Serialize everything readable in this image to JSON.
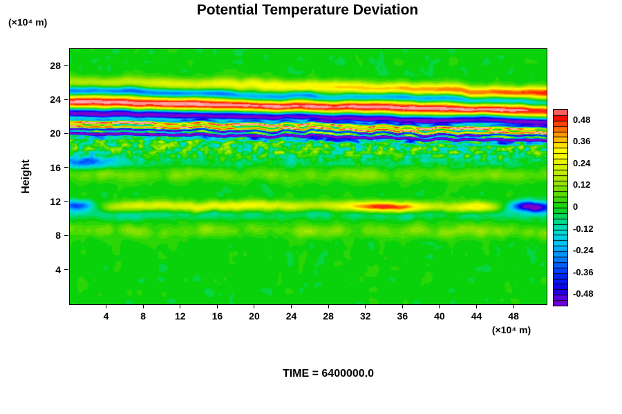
{
  "time_label": "TIME = 6400000.0",
  "chart_data": {
    "type": "heatmap",
    "title": "Potential Temperature Deviation",
    "ylabel": "Height",
    "y_unit_label": "(×10⁴ m)",
    "x_unit_label": "(×10⁴ m)",
    "x_range": [
      0,
      51.5
    ],
    "y_range": [
      0,
      30
    ],
    "x_ticks": [
      4,
      8,
      12,
      16,
      20,
      24,
      28,
      32,
      36,
      40,
      44,
      48
    ],
    "y_ticks": [
      4,
      8,
      12,
      16,
      20,
      24,
      28
    ],
    "quantize": 0.03,
    "colorbar": {
      "labels": [
        "0.48",
        "0.36",
        "0.24",
        "0.12",
        "0",
        "-0.12",
        "-0.24",
        "-0.36",
        "-0.48"
      ],
      "values": [
        0.48,
        0.36,
        0.24,
        0.12,
        0,
        -0.12,
        -0.24,
        -0.36,
        -0.48
      ],
      "range": [
        -0.54,
        0.54
      ],
      "segments": 36
    },
    "palette_stops": [
      [
        -0.57,
        "#7d00c8"
      ],
      [
        -0.5,
        "#6400e1"
      ],
      [
        -0.45,
        "#0f00e6"
      ],
      [
        -0.37,
        "#0028ff"
      ],
      [
        -0.28,
        "#0080ff"
      ],
      [
        -0.2,
        "#00c3f5"
      ],
      [
        -0.13,
        "#00dcd2"
      ],
      [
        -0.06,
        "#00da78"
      ],
      [
        0.0,
        "#0ad20a"
      ],
      [
        0.07,
        "#55dc00"
      ],
      [
        0.14,
        "#9ce400"
      ],
      [
        0.21,
        "#cdf000"
      ],
      [
        0.28,
        "#f5fa00"
      ],
      [
        0.32,
        "#ffff00"
      ],
      [
        0.36,
        "#ffcd00"
      ],
      [
        0.41,
        "#ff9100"
      ],
      [
        0.46,
        "#ff4b00"
      ],
      [
        0.5,
        "#ff0000"
      ],
      [
        0.54,
        "#ff9696"
      ],
      [
        0.57,
        "#ffabab"
      ]
    ],
    "noise": {
      "amp": 0.03,
      "fx": 0.8,
      "fy": 0.7,
      "seed": 7
    },
    "bands": [
      {
        "id": "upper-yellow-streak",
        "h0": 26.2,
        "slope": -0.028,
        "hw": 0.5,
        "amp": 0.17,
        "ampGrad": 0.0062,
        "wiggle": 0.45,
        "wf": 0.35,
        "seed": 11
      },
      {
        "id": "upper-cyan-streak",
        "h0": 25.1,
        "slope": -0.028,
        "hw": 0.38,
        "amp": -0.36,
        "wiggle": 0.4,
        "wf": 0.32,
        "seed": 21
      },
      {
        "id": "salmon-band",
        "h0": 23.8,
        "slope": -0.02,
        "hw": 0.62,
        "amp": 0.56,
        "wiggle": 0.22,
        "wf": 0.3,
        "seed": 31
      },
      {
        "id": "purple-band",
        "h0": 22.5,
        "slope": -0.02,
        "hw": 0.4,
        "amp": -0.62,
        "wiggle": 0.28,
        "wf": 0.35,
        "seed": 41
      },
      {
        "id": "red-line",
        "h0": 21.35,
        "slope": -0.018,
        "hw": 0.17,
        "amp": 0.5,
        "wiggle": 0.3,
        "wf": 0.5,
        "seed": 51
      },
      {
        "id": "stripe-zone",
        "type": "stripes",
        "h0": 20.85,
        "slope": -0.018,
        "hw": 0.7,
        "amp": 0.42,
        "wavelength": 0.55,
        "wiggle": 0.4,
        "wf": 0.6,
        "seed": 61
      },
      {
        "id": "lower-purple-band",
        "h0": 20.1,
        "slope": -0.016,
        "hw": 0.26,
        "amp": -0.55,
        "wiggle": 0.3,
        "wf": 0.7,
        "seed": 71
      },
      {
        "id": "turbulent-layer",
        "type": "noiseband",
        "h0": 18.6,
        "slope": -0.008,
        "hw": 1.05,
        "amp": 0.26,
        "fx": 1.7,
        "fy": 2.3,
        "seed": 81
      },
      {
        "id": "left-cyan-patch",
        "h0": 16.7,
        "slope": 0,
        "hw": 0.5,
        "amp": -0.04,
        "bumps": [
          [
            1.5,
            2.5,
            -0.26
          ]
        ],
        "wiggle": 0.3,
        "wf": 0.5,
        "seed": 85
      },
      {
        "id": "mid-band-15",
        "h0": 15.2,
        "slope": 0,
        "hw": 0.55,
        "amp": 0.13,
        "wiggle": 0.4,
        "wf": 0.5,
        "seed": 91,
        "mod": {
          "fx": 0.5,
          "depth": 1.0,
          "seed": 92
        }
      },
      {
        "id": "band-12",
        "h0": 11.6,
        "slope": -0.004,
        "hw": 0.42,
        "amp": 0.15,
        "wiggle": 0.3,
        "wf": 0.5,
        "seed": 101,
        "bumps": [
          [
            18,
            5,
            0.14
          ],
          [
            34,
            3,
            0.36
          ],
          [
            44,
            1.6,
            0.18
          ],
          [
            8,
            3,
            0.07
          ],
          [
            49.9,
            1.8,
            -0.75
          ],
          [
            0.8,
            1.6,
            -0.5
          ]
        ]
      },
      {
        "id": "band-10-cyan",
        "h0": 10.6,
        "slope": 0,
        "hw": 0.4,
        "amp": -0.1,
        "wiggle": 0.4,
        "wf": 0.45,
        "seed": 105,
        "mod": {
          "fx": 0.45,
          "depth": 1.0,
          "seed": 106
        }
      },
      {
        "id": "band-8",
        "h0": 8.6,
        "slope": 0,
        "hw": 0.55,
        "amp": 0.15,
        "wiggle": 0.5,
        "wf": 0.4,
        "seed": 111,
        "mod": {
          "fx": 0.42,
          "depth": 1.0,
          "seed": 112
        }
      }
    ]
  }
}
